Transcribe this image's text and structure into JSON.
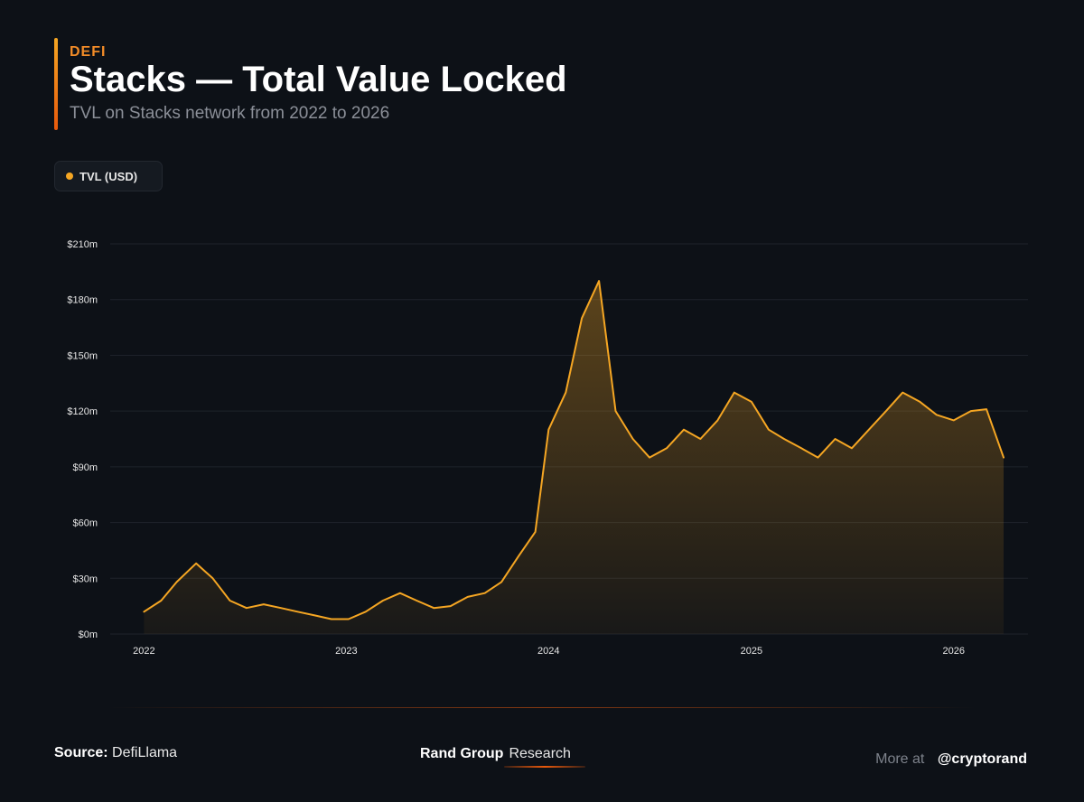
{
  "header": {
    "eyebrow": "DEFI",
    "title": "Stacks — Total Value Locked",
    "subtitle": "TVL on Stacks network from 2022 to 2026"
  },
  "legend": {
    "label": "TVL (USD)",
    "color": "#f5a623"
  },
  "footer": {
    "source_label": "Source:",
    "source_value": "DefiLlama",
    "brand_name": "Rand Group",
    "brand_sub": "Research",
    "more_label": "More at",
    "handle": "@cryptorand"
  },
  "chart_data": {
    "type": "area",
    "series": [
      {
        "name": "TVL (USD)",
        "color": "#f5a623",
        "points": [
          [
            "2022-01-01",
            12
          ],
          [
            "2022-02-01",
            18
          ],
          [
            "2022-03-01",
            28
          ],
          [
            "2022-04-05",
            38
          ],
          [
            "2022-05-05",
            30
          ],
          [
            "2022-06-05",
            18
          ],
          [
            "2022-07-05",
            14
          ],
          [
            "2022-08-05",
            16
          ],
          [
            "2022-09-05",
            14
          ],
          [
            "2022-10-05",
            12
          ],
          [
            "2022-11-05",
            10
          ],
          [
            "2022-12-05",
            8
          ],
          [
            "2023-01-05",
            8
          ],
          [
            "2023-02-05",
            12
          ],
          [
            "2023-03-08",
            18
          ],
          [
            "2023-04-08",
            22
          ],
          [
            "2023-05-08",
            18
          ],
          [
            "2023-06-08",
            14
          ],
          [
            "2023-07-08",
            15
          ],
          [
            "2023-08-08",
            20
          ],
          [
            "2023-09-08",
            22
          ],
          [
            "2023-10-08",
            28
          ],
          [
            "2023-11-08",
            42
          ],
          [
            "2023-12-08",
            55
          ],
          [
            "2024-01-01",
            110
          ],
          [
            "2024-02-01",
            130
          ],
          [
            "2024-03-01",
            170
          ],
          [
            "2024-04-01",
            190
          ],
          [
            "2024-05-01",
            120
          ],
          [
            "2024-06-01",
            105
          ],
          [
            "2024-07-01",
            95
          ],
          [
            "2024-08-01",
            100
          ],
          [
            "2024-09-01",
            110
          ],
          [
            "2024-10-01",
            105
          ],
          [
            "2024-11-01",
            115
          ],
          [
            "2024-12-01",
            130
          ],
          [
            "2025-01-01",
            125
          ],
          [
            "2025-02-01",
            110
          ],
          [
            "2025-03-01",
            105
          ],
          [
            "2025-04-01",
            100
          ],
          [
            "2025-05-01",
            95
          ],
          [
            "2025-06-01",
            105
          ],
          [
            "2025-07-01",
            100
          ],
          [
            "2025-08-01",
            110
          ],
          [
            "2025-09-01",
            120
          ],
          [
            "2025-10-01",
            130
          ],
          [
            "2025-11-01",
            125
          ],
          [
            "2025-12-01",
            118
          ],
          [
            "2026-01-01",
            115
          ],
          [
            "2026-02-01",
            120
          ],
          [
            "2026-03-01",
            121
          ],
          [
            "2026-04-01",
            95
          ]
        ]
      }
    ],
    "yticks": [
      {
        "value": 0,
        "label": "$0m"
      },
      {
        "value": 30,
        "label": "$30m"
      },
      {
        "value": 60,
        "label": "$60m"
      },
      {
        "value": 90,
        "label": "$90m"
      },
      {
        "value": 120,
        "label": "$120m"
      },
      {
        "value": 150,
        "label": "$150m"
      },
      {
        "value": 180,
        "label": "$180m"
      },
      {
        "value": 210,
        "label": "$210m"
      }
    ],
    "xticks": [
      {
        "value": "2022-01-01",
        "label": "2022"
      },
      {
        "value": "2023-01-01",
        "label": "2023"
      },
      {
        "value": "2024-01-01",
        "label": "2024"
      },
      {
        "value": "2025-01-01",
        "label": "2025"
      },
      {
        "value": "2026-01-01",
        "label": "2026"
      }
    ],
    "xlim": [
      "2021-11-01",
      "2026-05-15"
    ],
    "ylim": [
      0,
      210
    ],
    "grid": true,
    "legend_position": "top-left"
  }
}
